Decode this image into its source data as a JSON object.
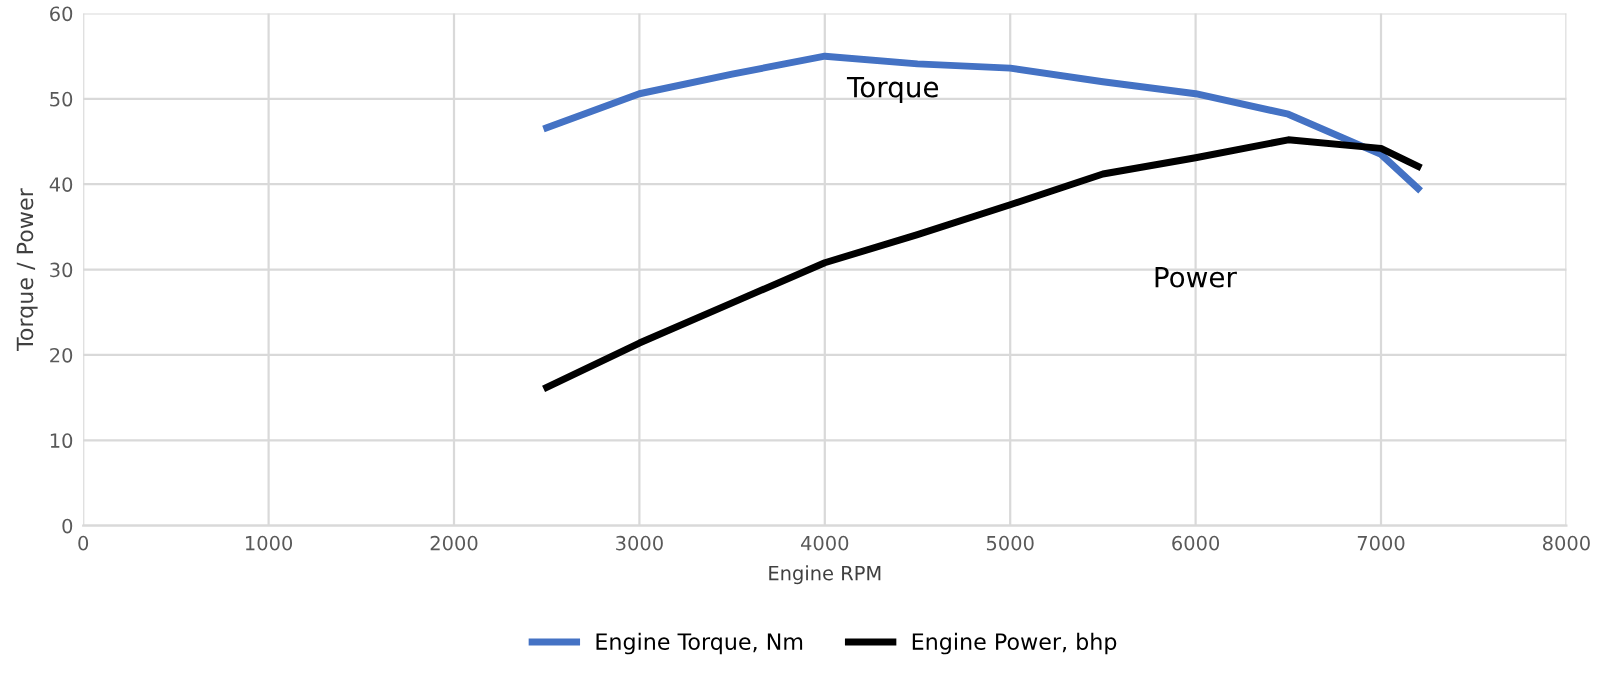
{
  "chart_data": {
    "type": "line",
    "xlabel": "Engine RPM",
    "ylabel": "Torque / Power",
    "xlim": [
      0,
      8000
    ],
    "xticks": [
      0,
      1000,
      2000,
      3000,
      4000,
      5000,
      6000,
      7000,
      8000
    ],
    "ylim": [
      0,
      60
    ],
    "yticks": [
      0,
      10,
      20,
      30,
      40,
      50,
      60
    ],
    "grid": true,
    "legend": "bottom",
    "marker": "none",
    "line_style": "solid",
    "x": [
      2500,
      3000,
      3500,
      4000,
      4500,
      5000,
      5500,
      6000,
      6500,
      7000,
      7200
    ],
    "series": [
      {
        "name": "Engine Torque, Nm",
        "color": "#4472c4",
        "values": [
          46.6,
          50.6,
          52.9,
          55,
          54.1,
          53.6,
          52,
          50.6,
          48.2,
          43.5,
          39.5
        ]
      },
      {
        "name": "Engine Power, bhp",
        "color": "#000000",
        "values": [
          16.2,
          21.4,
          26.1,
          30.8,
          34.1,
          37.6,
          41.2,
          43.1,
          45.2,
          44.2,
          42.1
        ]
      }
    ],
    "annotations": [
      "Torque",
      "Power"
    ]
  }
}
